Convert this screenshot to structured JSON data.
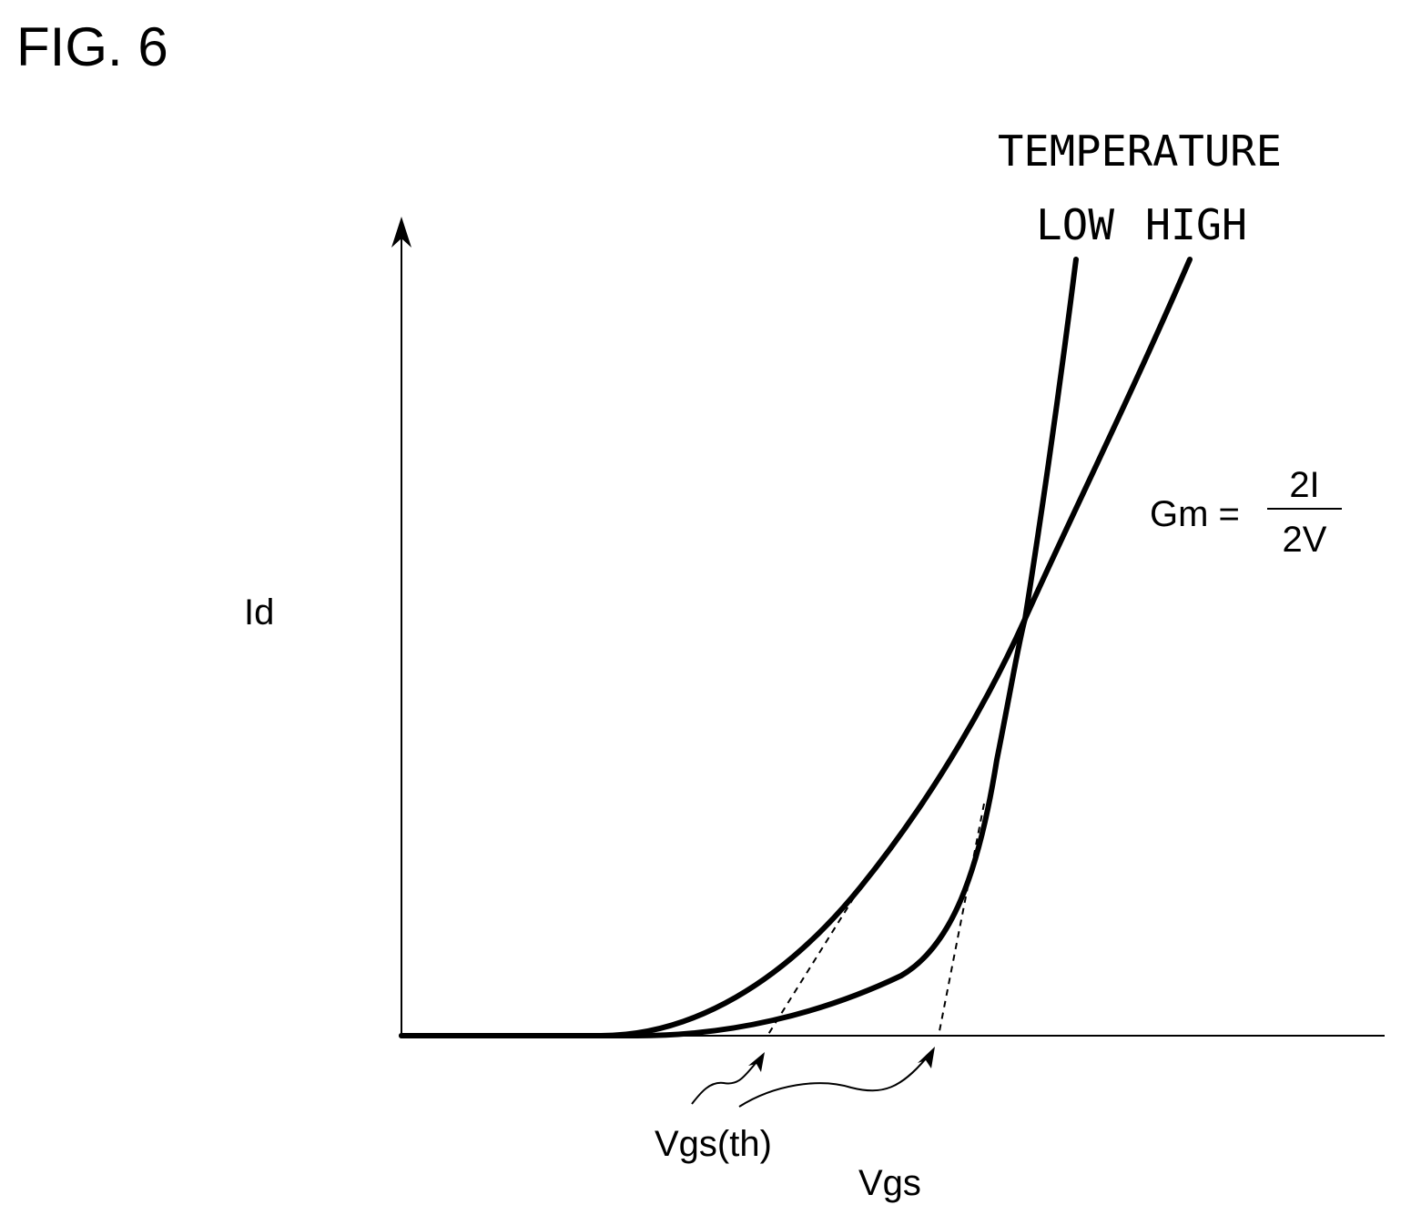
{
  "figure_label": "FIG. 6",
  "legend": {
    "title": "TEMPERATURE",
    "low": "LOW",
    "high": "HIGH"
  },
  "axes": {
    "y_label": "Id",
    "x_label": "Vgs"
  },
  "annotations": {
    "threshold": "Vgs(th)",
    "formula_lhs": "Gm =",
    "formula_numerator": "2I",
    "formula_denominator": "2V"
  }
}
